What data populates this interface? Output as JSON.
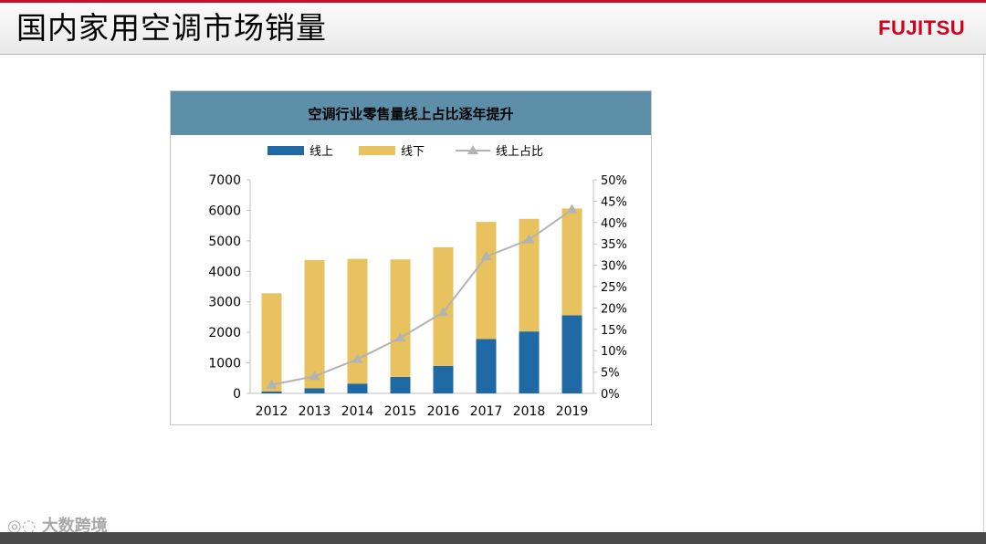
{
  "slide": {
    "title": "国内家用空调市场销量",
    "logo_text": "FUJITSU",
    "brand_color": "#d0021b"
  },
  "watermark": {
    "text": "大数跨境"
  },
  "chart_data": {
    "type": "bar",
    "title": "空调行业零售量线上占比逐年提升",
    "categories": [
      "2012",
      "2013",
      "2014",
      "2015",
      "2016",
      "2017",
      "2018",
      "2019"
    ],
    "series": [
      {
        "name": "线上",
        "type": "stacked-bar",
        "color": "#1f6aa5",
        "values": [
          60,
          170,
          320,
          540,
          900,
          1780,
          2030,
          2560
        ]
      },
      {
        "name": "线下",
        "type": "stacked-bar",
        "color": "#e7c25f",
        "values": [
          3220,
          4200,
          4090,
          3850,
          3890,
          3840,
          3690,
          3500
        ]
      },
      {
        "name": "线上占比",
        "type": "line",
        "axis": "right",
        "color": "#b3b3b3",
        "values": [
          2,
          4,
          8,
          13,
          19,
          32,
          36,
          43
        ]
      }
    ],
    "ylim": [
      0,
      7000
    ],
    "yticks": [
      "0",
      "1000",
      "2000",
      "3000",
      "4000",
      "5000",
      "6000",
      "7000"
    ],
    "y2lim": [
      0,
      50
    ],
    "y2ticks": [
      "0%",
      "5%",
      "10%",
      "15%",
      "20%",
      "25%",
      "30%",
      "35%",
      "40%",
      "45%",
      "50%"
    ],
    "legend_position": "top-center",
    "grid": false
  }
}
